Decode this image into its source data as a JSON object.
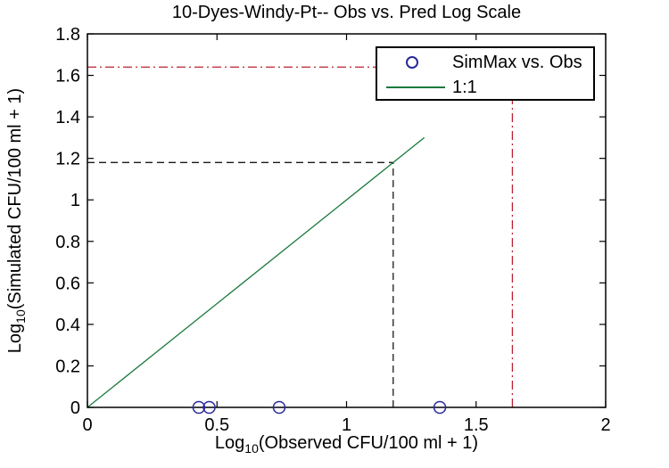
{
  "title": "10-Dyes-Windy-Pt-- Obs vs. Pred Log Scale",
  "axes": {
    "xlabel": {
      "prefix": "Log",
      "sub": "10",
      "suffix": "(Observed CFU/100 ml + 1)"
    },
    "ylabel": {
      "prefix": "Log",
      "sub": "10",
      "suffix": "(Simulated CFU/100 ml + 1)"
    },
    "x_tick_values": [
      0,
      0.5,
      1,
      1.5,
      2
    ],
    "x_tick_labels": [
      "0",
      "0.5",
      "1",
      "1.5",
      "2"
    ],
    "y_tick_values": [
      0,
      0.2,
      0.4,
      0.6,
      0.8,
      1,
      1.2,
      1.4,
      1.6,
      1.8
    ],
    "y_tick_labels": [
      "0",
      "0.2",
      "0.4",
      "0.6",
      "0.8",
      "1",
      "1.2",
      "1.4",
      "1.6",
      "1.8"
    ]
  },
  "legend": {
    "items": [
      {
        "label": "SimMax vs. Obs",
        "marker": "circle",
        "color": "#28289B"
      },
      {
        "label": "1:1",
        "marker": "line",
        "color": "#1A7A3C"
      }
    ]
  },
  "chart_data": {
    "type": "scatter",
    "title": "10-Dyes-Windy-Pt-- Obs vs. Pred Log Scale",
    "xlabel": "Log10(Observed CFU/100 ml + 1)",
    "ylabel": "Log10(Simulated CFU/100 ml + 1)",
    "xlim": [
      0,
      2
    ],
    "ylim": [
      0,
      1.8
    ],
    "grid": false,
    "legend_position": "top-right-inside",
    "series": [
      {
        "name": "SimMax vs. Obs",
        "type": "scatter",
        "marker": "open-circle",
        "color": "#28289B",
        "points": [
          [
            0.43,
            0
          ],
          [
            0.47,
            0
          ],
          [
            0.74,
            0
          ],
          [
            1.36,
            0
          ]
        ]
      },
      {
        "name": "1:1",
        "type": "line",
        "color": "#1A7A3C",
        "points": [
          [
            0,
            0
          ],
          [
            1.3,
            1.3
          ]
        ]
      }
    ],
    "reference_lines": [
      {
        "orientation": "horizontal",
        "value": 1.64,
        "extent": [
          0,
          1.64
        ],
        "style": "dashdot",
        "color": "#BB2233"
      },
      {
        "orientation": "vertical",
        "value": 1.64,
        "extent": [
          0,
          1.64
        ],
        "style": "dashdot",
        "color": "#BB2233"
      },
      {
        "orientation": "horizontal",
        "value": 1.18,
        "extent": [
          0,
          1.18
        ],
        "style": "dashed",
        "color": "#1A1A1A"
      },
      {
        "orientation": "vertical",
        "value": 1.18,
        "extent": [
          0,
          1.18
        ],
        "style": "dashed",
        "color": "#1A1A1A"
      }
    ]
  }
}
